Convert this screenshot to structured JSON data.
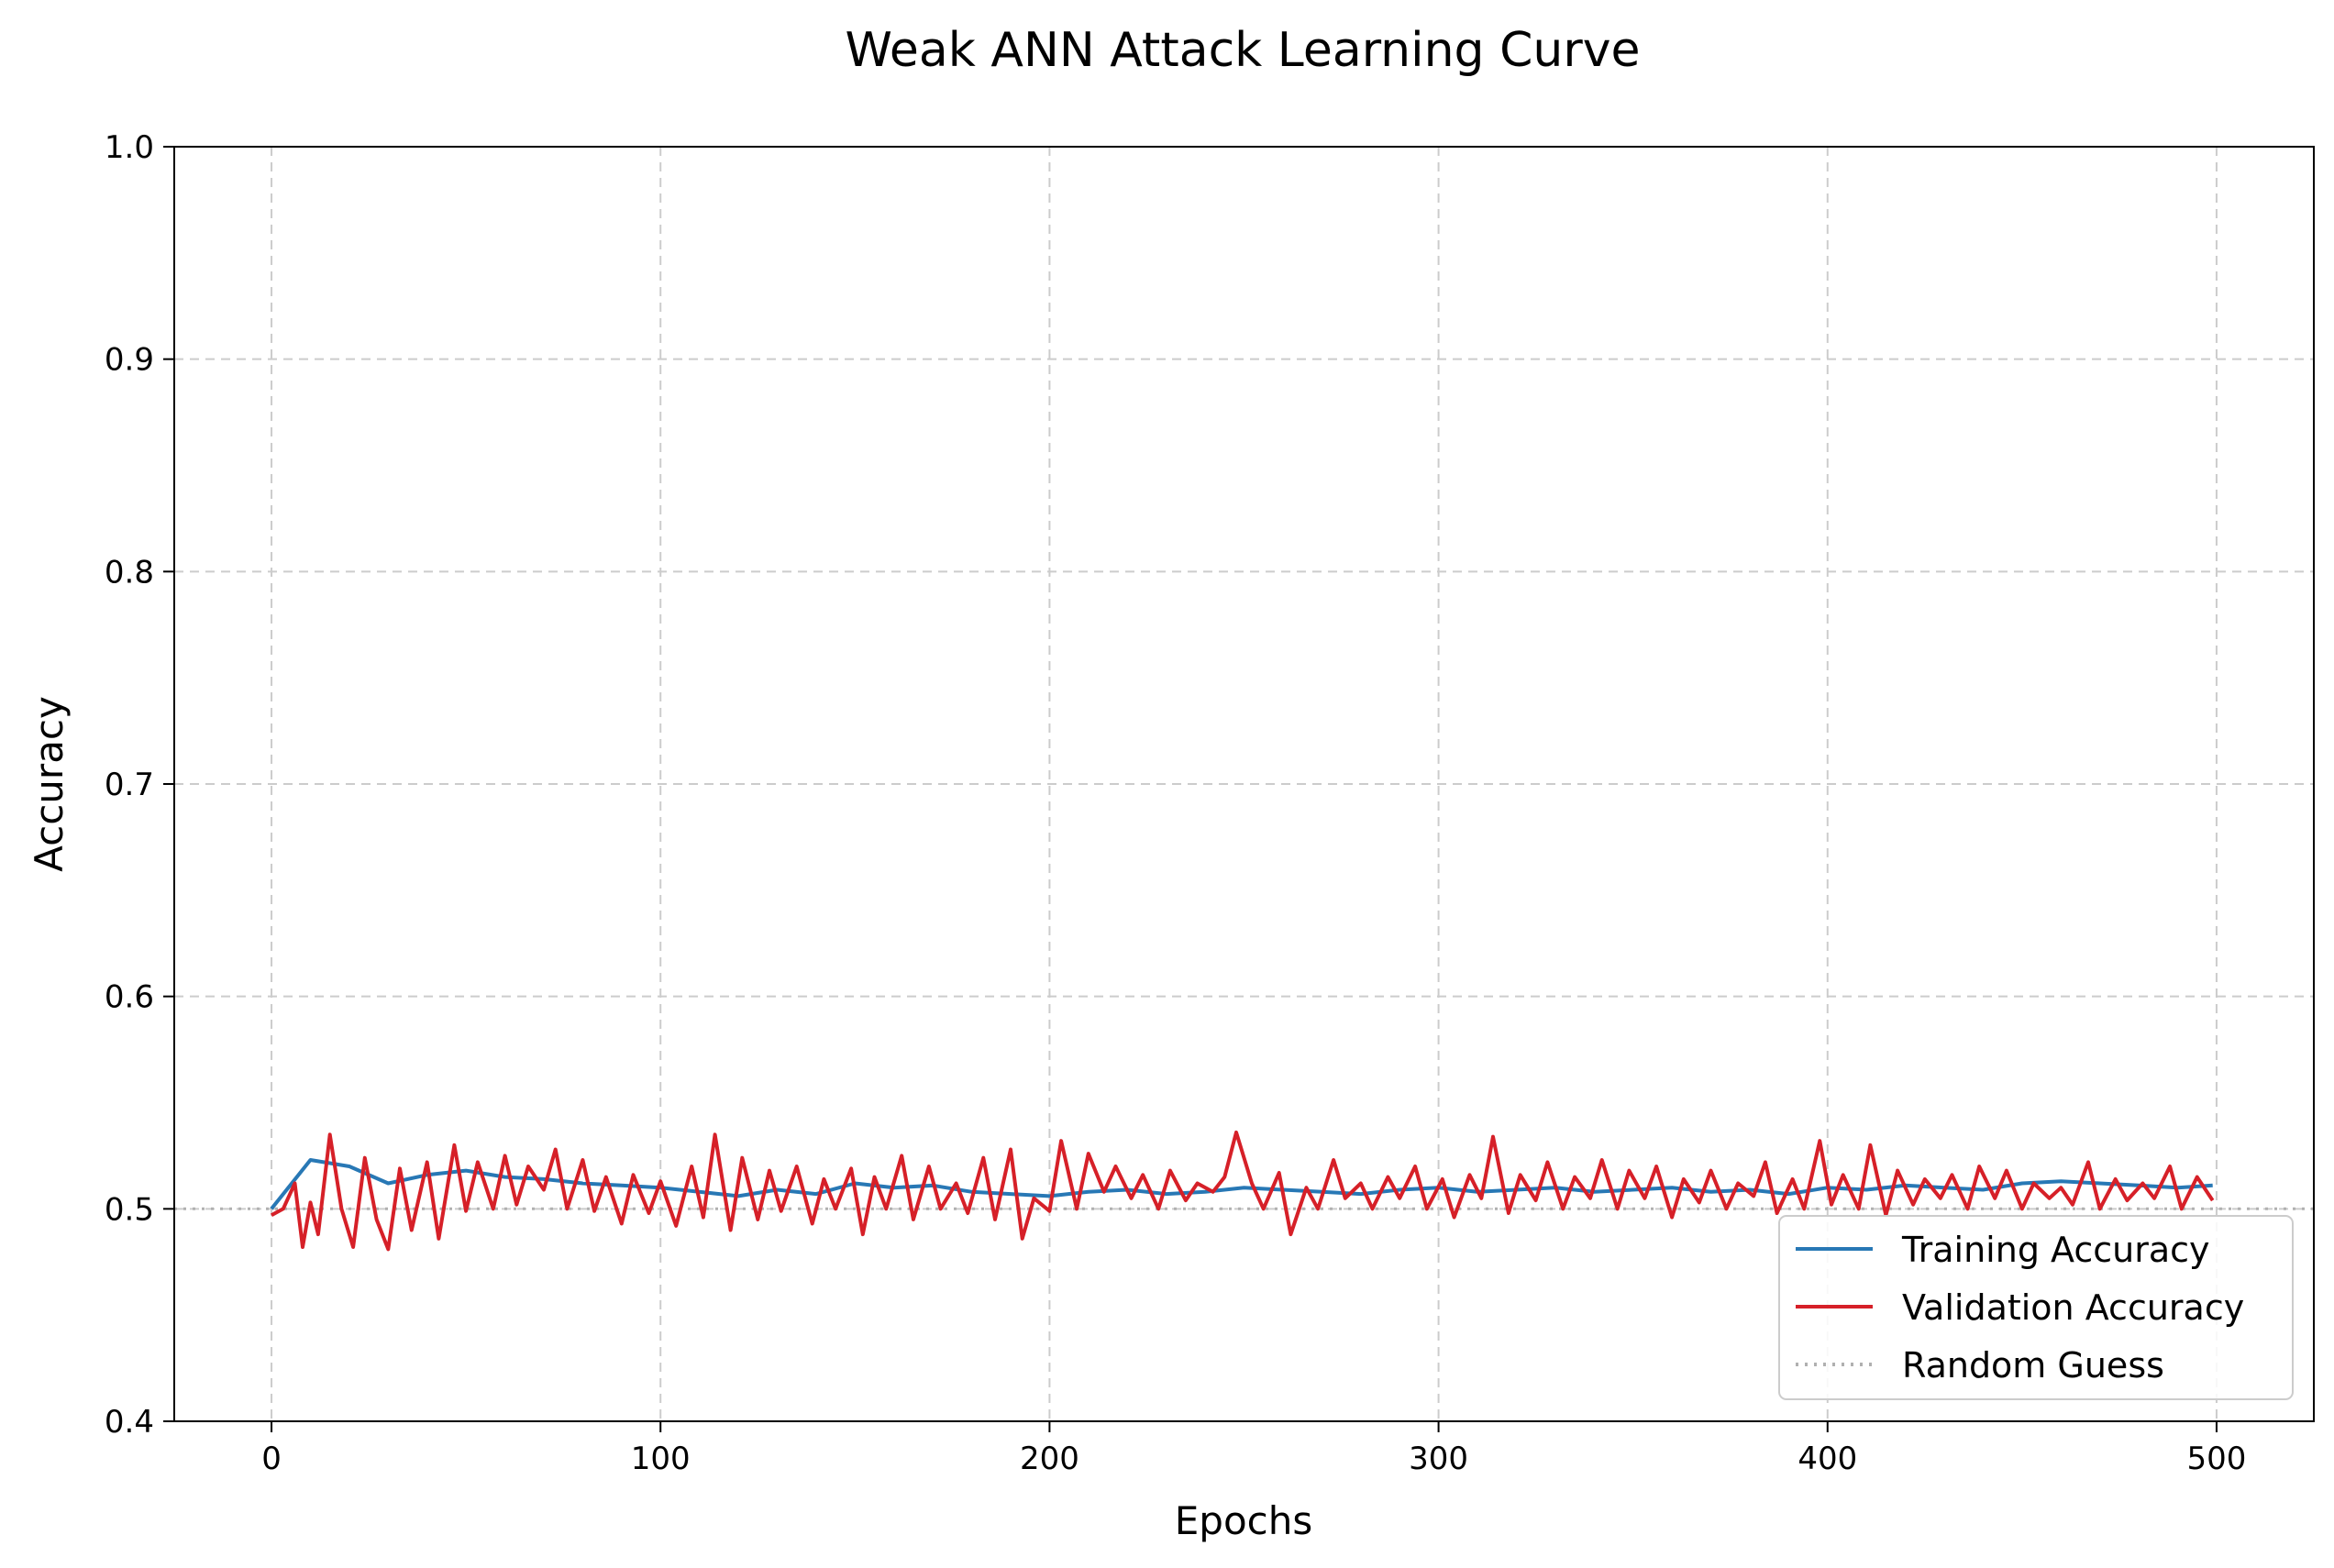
{
  "chart_data": {
    "type": "line",
    "title": "Weak ANN Attack Learning Curve",
    "xlabel": "Epochs",
    "ylabel": "Accuracy",
    "xlim": [
      -25,
      525
    ],
    "ylim": [
      0.4,
      1.0
    ],
    "xticks": [
      0,
      100,
      200,
      300,
      400,
      500
    ],
    "xtick_labels": [
      "0",
      "100",
      "200",
      "300",
      "400",
      "500"
    ],
    "yticks": [
      0.4,
      0.5,
      0.6,
      0.7,
      0.8,
      0.9,
      1.0
    ],
    "ytick_labels": [
      "0.4",
      "0.5",
      "0.6",
      "0.7",
      "0.8",
      "0.9",
      "1.0"
    ],
    "grid": true,
    "legend_position": "lower-right",
    "series": [
      {
        "name": "Training Accuracy",
        "color": "#2878b5",
        "style": "solid",
        "x": [
          0,
          10,
          20,
          30,
          40,
          50,
          60,
          70,
          80,
          90,
          100,
          110,
          120,
          130,
          140,
          150,
          160,
          170,
          180,
          190,
          200,
          210,
          220,
          230,
          240,
          250,
          260,
          270,
          280,
          290,
          300,
          310,
          320,
          330,
          340,
          350,
          360,
          370,
          380,
          390,
          400,
          410,
          420,
          430,
          440,
          450,
          460,
          470,
          480,
          490,
          499
        ],
        "values": [
          0.5,
          0.523,
          0.52,
          0.512,
          0.516,
          0.518,
          0.515,
          0.514,
          0.512,
          0.511,
          0.51,
          0.508,
          0.506,
          0.509,
          0.507,
          0.512,
          0.51,
          0.511,
          0.508,
          0.507,
          0.506,
          0.508,
          0.509,
          0.507,
          0.508,
          0.51,
          0.509,
          0.508,
          0.507,
          0.509,
          0.51,
          0.508,
          0.509,
          0.51,
          0.508,
          0.509,
          0.51,
          0.508,
          0.509,
          0.507,
          0.51,
          0.509,
          0.511,
          0.51,
          0.509,
          0.512,
          0.513,
          0.512,
          0.511,
          0.51,
          0.511
        ]
      },
      {
        "name": "Validation Accuracy",
        "color": "#d62028",
        "style": "solid",
        "x": [
          0,
          3,
          6,
          8,
          10,
          12,
          15,
          18,
          21,
          24,
          27,
          30,
          33,
          36,
          40,
          43,
          47,
          50,
          53,
          57,
          60,
          63,
          66,
          70,
          73,
          76,
          80,
          83,
          86,
          90,
          93,
          97,
          100,
          104,
          108,
          111,
          114,
          118,
          121,
          125,
          128,
          131,
          135,
          139,
          142,
          145,
          149,
          152,
          155,
          158,
          162,
          165,
          169,
          172,
          176,
          179,
          183,
          186,
          190,
          193,
          196,
          200,
          203,
          207,
          210,
          214,
          217,
          221,
          224,
          228,
          231,
          235,
          238,
          242,
          245,
          248,
          252,
          255,
          259,
          262,
          266,
          269,
          273,
          276,
          280,
          283,
          287,
          290,
          294,
          297,
          301,
          304,
          308,
          311,
          314,
          318,
          321,
          325,
          328,
          332,
          335,
          339,
          342,
          346,
          349,
          353,
          356,
          360,
          363,
          367,
          370,
          374,
          377,
          381,
          384,
          387,
          391,
          394,
          398,
          401,
          404,
          408,
          411,
          415,
          418,
          422,
          425,
          429,
          432,
          436,
          439,
          443,
          446,
          450,
          453,
          457,
          460,
          463,
          467,
          470,
          474,
          477,
          481,
          484,
          488,
          491,
          495,
          499
        ],
        "values": [
          0.497,
          0.5,
          0.512,
          0.482,
          0.503,
          0.488,
          0.535,
          0.5,
          0.482,
          0.524,
          0.495,
          0.481,
          0.519,
          0.49,
          0.522,
          0.486,
          0.53,
          0.499,
          0.522,
          0.5,
          0.525,
          0.502,
          0.52,
          0.509,
          0.528,
          0.5,
          0.523,
          0.499,
          0.515,
          0.493,
          0.516,
          0.498,
          0.513,
          0.492,
          0.52,
          0.496,
          0.535,
          0.49,
          0.524,
          0.495,
          0.518,
          0.499,
          0.52,
          0.493,
          0.514,
          0.5,
          0.519,
          0.488,
          0.515,
          0.5,
          0.525,
          0.495,
          0.52,
          0.5,
          0.512,
          0.498,
          0.524,
          0.495,
          0.528,
          0.486,
          0.505,
          0.499,
          0.532,
          0.5,
          0.526,
          0.508,
          0.52,
          0.505,
          0.516,
          0.5,
          0.518,
          0.504,
          0.512,
          0.508,
          0.515,
          0.536,
          0.512,
          0.5,
          0.517,
          0.488,
          0.51,
          0.5,
          0.523,
          0.505,
          0.512,
          0.5,
          0.515,
          0.505,
          0.52,
          0.5,
          0.514,
          0.496,
          0.516,
          0.505,
          0.534,
          0.498,
          0.516,
          0.504,
          0.522,
          0.5,
          0.515,
          0.505,
          0.523,
          0.5,
          0.518,
          0.505,
          0.52,
          0.496,
          0.514,
          0.503,
          0.518,
          0.5,
          0.512,
          0.506,
          0.522,
          0.498,
          0.514,
          0.5,
          0.532,
          0.502,
          0.516,
          0.5,
          0.53,
          0.497,
          0.518,
          0.502,
          0.514,
          0.505,
          0.516,
          0.5,
          0.52,
          0.505,
          0.518,
          0.5,
          0.512,
          0.505,
          0.51,
          0.502,
          0.522,
          0.5,
          0.514,
          0.504,
          0.512,
          0.505,
          0.52,
          0.5,
          0.515,
          0.504
        ]
      },
      {
        "name": "Random Guess",
        "color": "#b0b0b0",
        "style": "dotted",
        "x": [
          -25,
          525
        ],
        "values": [
          0.5,
          0.5
        ]
      }
    ]
  }
}
